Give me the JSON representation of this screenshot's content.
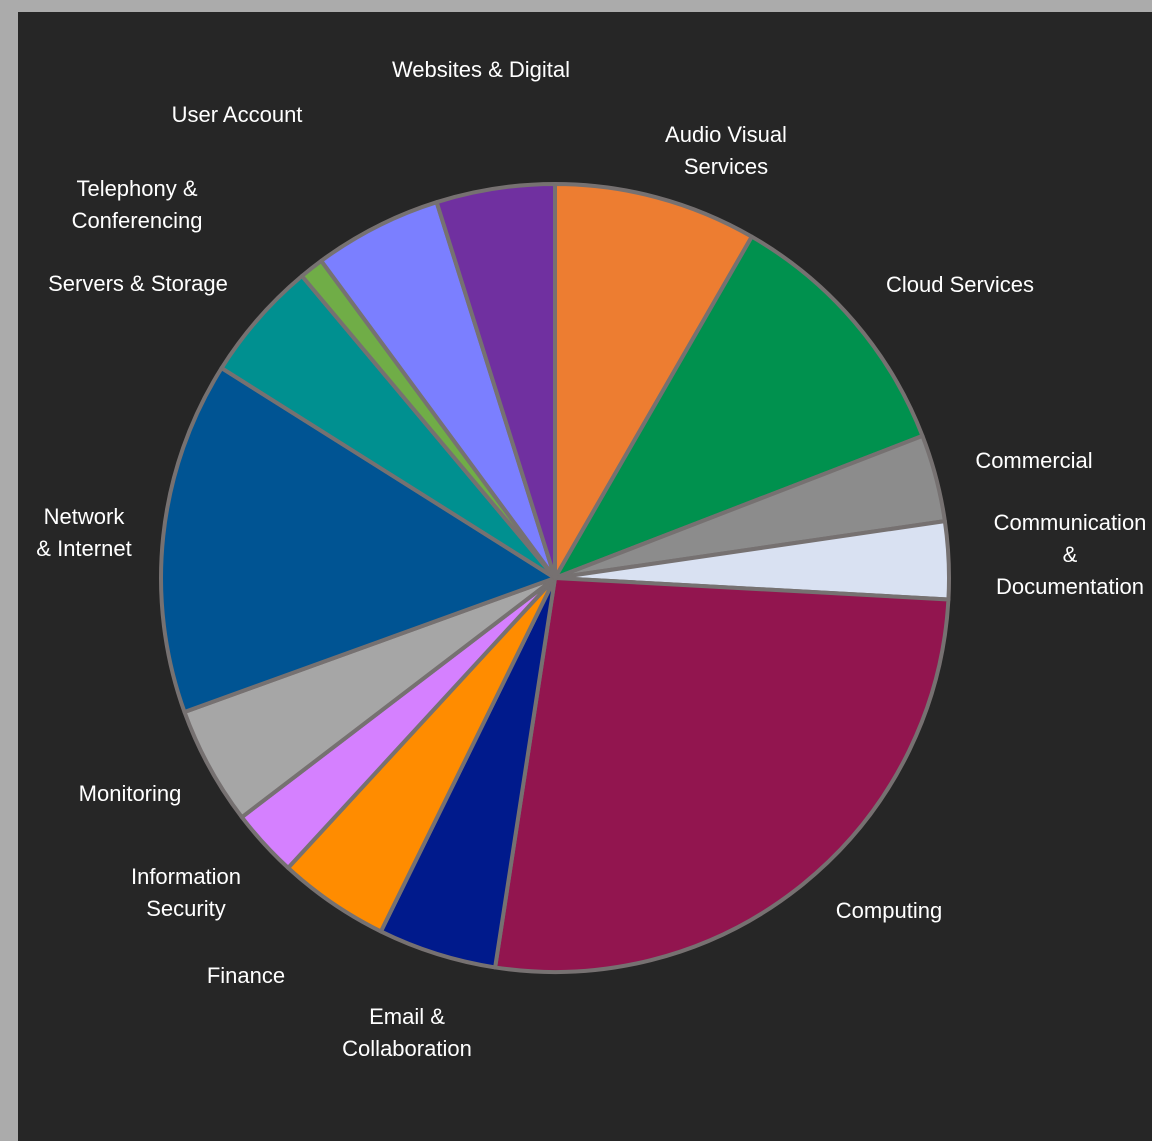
{
  "chart_data": {
    "type": "pie",
    "title": "",
    "start_angle_deg": 0,
    "direction": "clockwise",
    "border_color": "#767171",
    "background_color": "#262626",
    "slices": [
      {
        "label": "Audio Visual Services",
        "label_lines": [
          "Audio Visual",
          "Services"
        ],
        "value": 8.4,
        "color": "#ED7D31"
      },
      {
        "label": "Cloud Services",
        "label_lines": [
          "Cloud Services"
        ],
        "value": 10.9,
        "color": "#00914E"
      },
      {
        "label": "Commercial",
        "label_lines": [
          "Commercial"
        ],
        "value": 3.6,
        "color": "#8C8C8C"
      },
      {
        "label": "Communication & Documentation",
        "label_lines": [
          "Communication",
          "&",
          "Documentation"
        ],
        "value": 3.2,
        "color": "#D9E1F2"
      },
      {
        "label": "Computing",
        "label_lines": [
          "Computing"
        ],
        "value": 26.8,
        "color": "#92154F"
      },
      {
        "label": "Email & Collaboration",
        "label_lines": [
          "Email &",
          "Collaboration"
        ],
        "value": 4.9,
        "color": "#001A8C"
      },
      {
        "label": "Finance",
        "label_lines": [
          "Finance"
        ],
        "value": 4.6,
        "color": "#FF8C00"
      },
      {
        "label": "Information Security",
        "label_lines": [
          "Information",
          "Security"
        ],
        "value": 2.8,
        "color": "#D580FF"
      },
      {
        "label": "Monitoring",
        "label_lines": [
          "Monitoring"
        ],
        "value": 4.9,
        "color": "#A6A6A6"
      },
      {
        "label": "Network & Internet",
        "label_lines": [
          "Network",
          "& Internet"
        ],
        "value": 14.6,
        "color": "#005493"
      },
      {
        "label": "Servers & Storage",
        "label_lines": [
          "Servers & Storage"
        ],
        "value": 5.0,
        "color": "#009090"
      },
      {
        "label": "Telephony & Conferencing",
        "label_lines": [
          "Telephony &",
          "Conferencing"
        ],
        "value": 1.0,
        "color": "#70AD47"
      },
      {
        "label": "User Account",
        "label_lines": [
          "User Account"
        ],
        "value": 5.3,
        "color": "#7B7FFF"
      },
      {
        "label": "Websites & Digital",
        "label_lines": [
          "Websites & Digital"
        ],
        "value": 4.9,
        "color": "#7030A0"
      }
    ]
  }
}
